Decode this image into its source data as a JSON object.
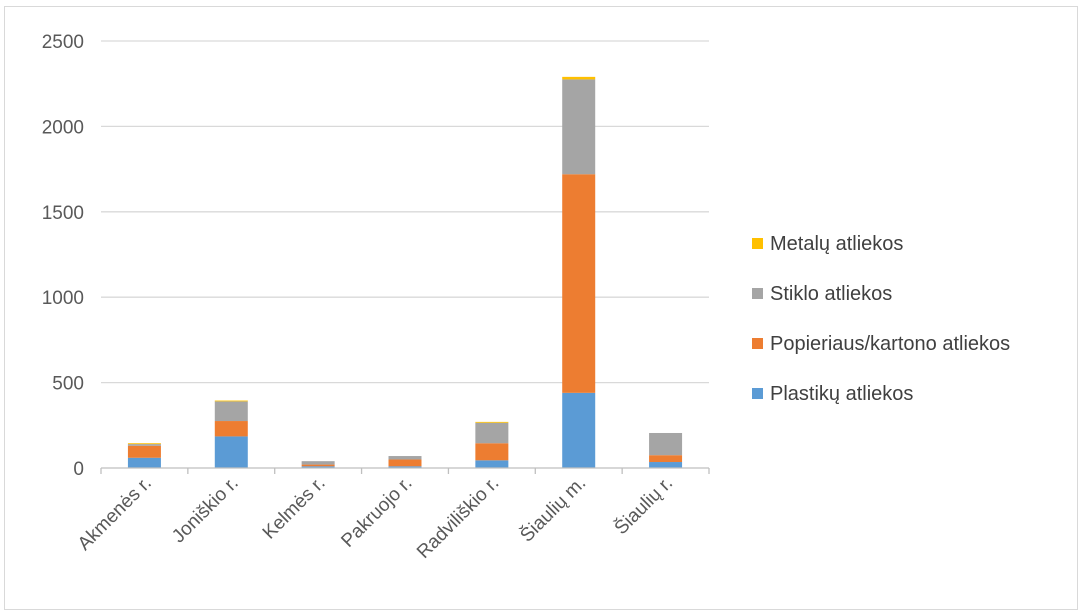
{
  "chart_data": {
    "type": "bar",
    "stacked": true,
    "categories": [
      "Akmenės r.",
      "Joniškio r.",
      "Kelmės r.",
      "Pakruojo r.",
      "Radviliškio r.",
      "Šiaulių m.",
      "Šiaulių r."
    ],
    "series": [
      {
        "name": "Plastikų atliekos",
        "color": "#5b9bd5",
        "values": [
          60,
          185,
          10,
          10,
          45,
          440,
          35
        ]
      },
      {
        "name": "Popieriaus/kartono atliekos",
        "color": "#ed7d31",
        "values": [
          70,
          90,
          10,
          40,
          100,
          1280,
          40
        ]
      },
      {
        "name": "Stiklo atliekos",
        "color": "#a5a5a5",
        "values": [
          10,
          115,
          20,
          20,
          120,
          555,
          130
        ]
      },
      {
        "name": "Metalų atliekos",
        "color": "#ffc000",
        "values": [
          5,
          5,
          0,
          0,
          5,
          15,
          0
        ]
      }
    ],
    "y_ticks": [
      "0",
      "500",
      "1000",
      "1500",
      "2000",
      "2500"
    ],
    "ylim": [
      0,
      2500
    ],
    "grid": true,
    "legend_position": "right"
  }
}
